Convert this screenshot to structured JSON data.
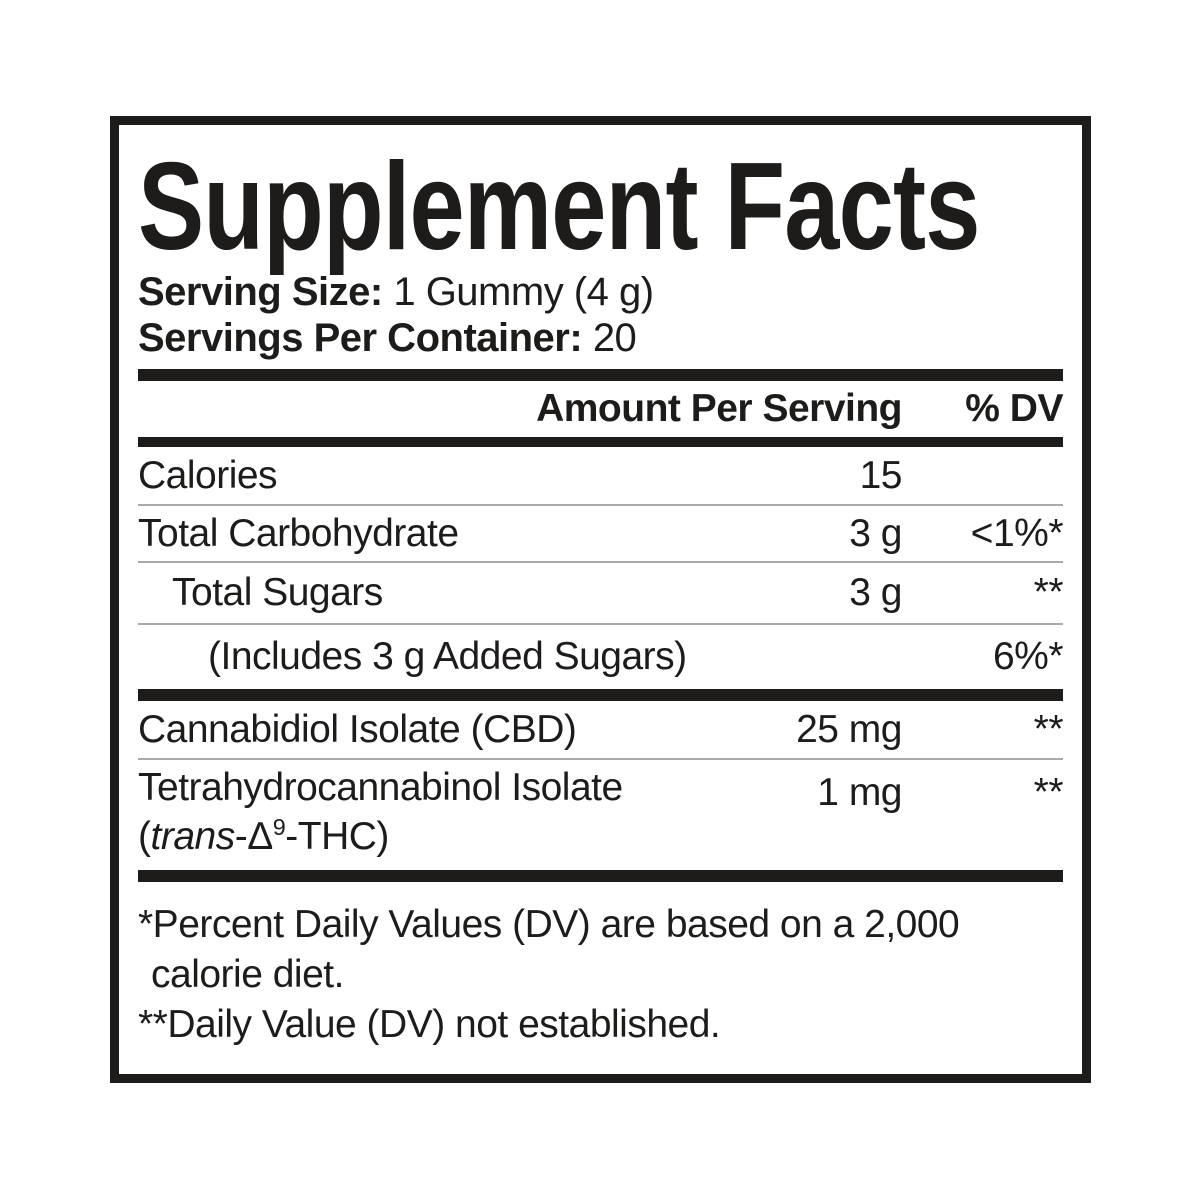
{
  "label": {
    "title": "Supplement Facts",
    "serving_size": {
      "label": "Serving Size:",
      "value": "1 Gummy (4 g)"
    },
    "servings_per_container": {
      "label": "Servings Per Container:",
      "value": "20"
    },
    "header": {
      "amount": "Amount Per Serving",
      "dv": "% DV"
    },
    "rows": [
      {
        "label": "Calories",
        "amount": "15",
        "dv": ""
      },
      {
        "label": "Total Carbohydrate",
        "amount": "3 g",
        "dv": "<1%*"
      },
      {
        "label": "Total Sugars",
        "amount": "3 g",
        "dv": "**"
      },
      {
        "label": "(Includes 3 g Added Sugars)",
        "amount": "",
        "dv": "6%*"
      },
      {
        "label": "Cannabidiol Isolate (CBD)",
        "amount": "25 mg",
        "dv": "**"
      },
      {
        "label": "Tetrahydrocannabinol Isolate",
        "label_line2": {
          "pre": "(",
          "italic": "trans",
          "mid": "-Δ",
          "sup": "9",
          "post": "-THC)"
        },
        "amount": "1 mg",
        "dv": "**"
      }
    ],
    "footnotes": {
      "line1": "*Percent Daily Values (DV) are based on a 2,000",
      "line2": "calorie diet.",
      "line3": "**Daily Value (DV) not established."
    },
    "colors": {
      "ink": "#1d1c1a",
      "separator": "#a9a9a9"
    }
  }
}
